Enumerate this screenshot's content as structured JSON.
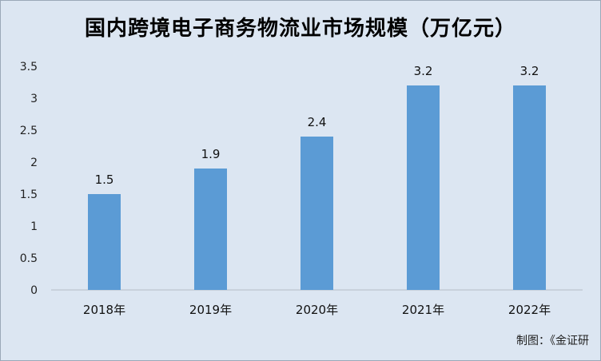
{
  "chart_data": {
    "type": "bar",
    "title": "国内跨境电子商务物流业市场规模（万亿元）",
    "categories": [
      "2018年",
      "2019年",
      "2020年",
      "2021年",
      "2022年"
    ],
    "values": [
      1.5,
      1.9,
      2.4,
      3.2,
      3.2
    ],
    "data_labels": [
      "1.5",
      "1.9",
      "2.4",
      "3.2",
      "3.2"
    ],
    "y_ticks": [
      "0",
      "0.5",
      "1",
      "1.5",
      "2",
      "2.5",
      "3",
      "3.5"
    ],
    "ylim": [
      0,
      3.5
    ],
    "grid": false,
    "legend": "none",
    "bar_color": "#5b9bd5"
  },
  "footer": {
    "credit": "制图：《金证研"
  }
}
